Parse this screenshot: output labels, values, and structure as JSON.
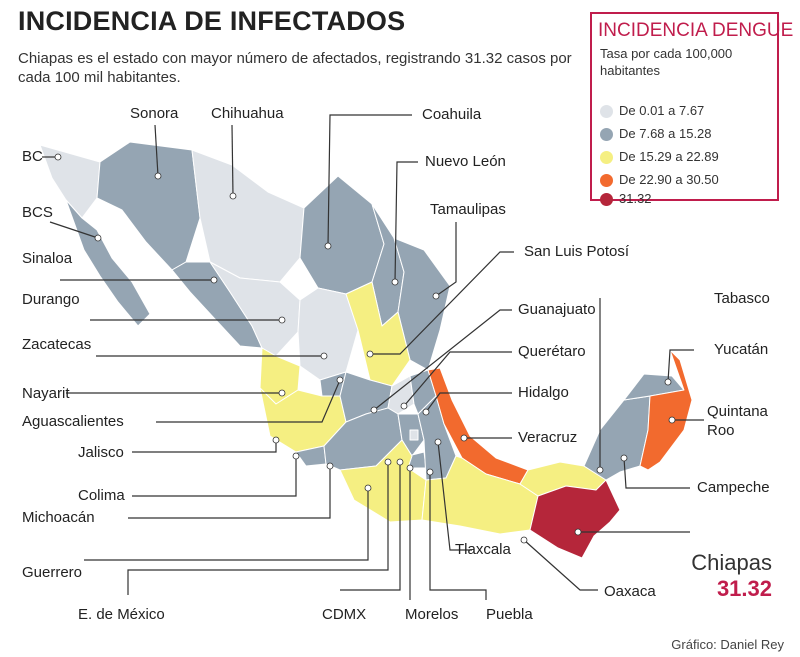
{
  "title": "INCIDENCIA DE INFECTADOS",
  "subtitle": "Chiapas es el estado con mayor número de afectados, registrando 31.32 casos por cada 100 mil habitantes.",
  "legend": {
    "title": "INCIDENCIA DENGUE",
    "subtitle": "Tasa por cada 100,000 habitantes",
    "items": [
      {
        "label": "De 0.01 a 7.67",
        "color": "#dfe3e8"
      },
      {
        "label": "De 7.68 a 15.28",
        "color": "#95a5b3"
      },
      {
        "label": "De 15.29 a  22.89",
        "color": "#f5ef82"
      },
      {
        "label": "De 22.90 a  30.50",
        "color": "#f26a2e"
      },
      {
        "label": "31.32",
        "color": "#b5263a"
      }
    ]
  },
  "states": {
    "bc": "BC",
    "bcs": "BCS",
    "sonora": "Sonora",
    "chihuahua": "Chihuahua",
    "coahuila": "Coahuila",
    "nuevo_leon": "Nuevo León",
    "tamaulipas": "Tamaulipas",
    "slp": "San Luis Potosí",
    "sinaloa": "Sinaloa",
    "durango": "Durango",
    "zacatecas": "Zacatecas",
    "guanajuato": "Guanajuato",
    "queretaro": "Querétaro",
    "tabasco": "Tabasco",
    "yucatan": "Yucatán",
    "quintana_roo": "Quintana Roo",
    "nayarit": "Nayarit",
    "aguascalientes": "Aguascalientes",
    "hidalgo": "Hidalgo",
    "jalisco": "Jalisco",
    "veracruz": "Veracruz",
    "campeche": "Campeche",
    "colima": "Colima",
    "michoacan": "Michoacán",
    "guerrero": "Guerrero",
    "tlaxcala": "Tlaxcala",
    "edomex": "E. de México",
    "cdmx": "CDMX",
    "morelos": "Morelos",
    "puebla": "Puebla",
    "oaxaca": "Oaxaca"
  },
  "chiapas": {
    "name": "Chiapas",
    "value": "31.32"
  },
  "credit": "Gráfico: Daniel Rey",
  "colors": {
    "accent": "#c01d4c",
    "light": "#dfe3e8",
    "gray": "#95a5b3",
    "yellow": "#f5ef82",
    "orange": "#f26a2e",
    "red": "#b5263a"
  }
}
